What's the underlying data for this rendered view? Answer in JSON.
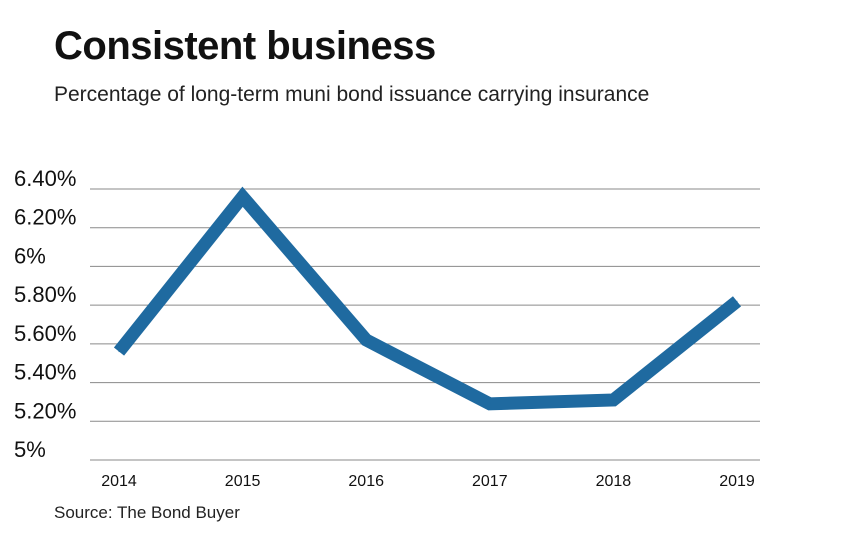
{
  "chart_data": {
    "type": "line",
    "title": "Consistent business",
    "subtitle": "Percentage of long-term muni bond issuance carrying insurance",
    "source": "Source: The Bond Buyer",
    "categories": [
      "2014",
      "2015",
      "2016",
      "2017",
      "2018",
      "2019"
    ],
    "series": [
      {
        "values": [
          5.56,
          6.36,
          5.62,
          5.29,
          5.31,
          5.82
        ]
      }
    ],
    "yticks": [
      {
        "value": 6.4,
        "label": "6.40%"
      },
      {
        "value": 6.2,
        "label": "6.20%"
      },
      {
        "value": 6.0,
        "label": "6%"
      },
      {
        "value": 5.8,
        "label": "5.80%"
      },
      {
        "value": 5.6,
        "label": "5.60%"
      },
      {
        "value": 5.4,
        "label": "5.40%"
      },
      {
        "value": 5.2,
        "label": "5.20%"
      },
      {
        "value": 5.0,
        "label": "5%"
      }
    ],
    "ylim": [
      5.0,
      6.4
    ],
    "grid": true,
    "colors": {
      "line": "#1f6aa0",
      "grid": "#8a8a8a"
    }
  }
}
